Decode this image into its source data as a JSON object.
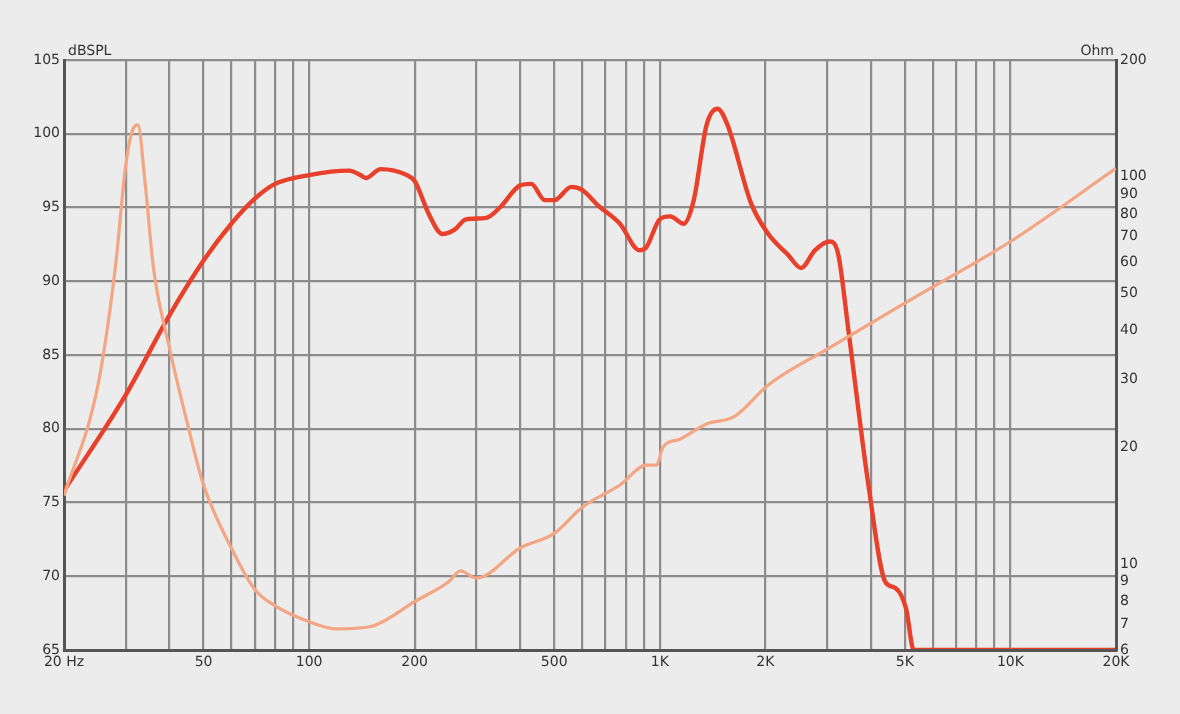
{
  "chart_data": [
    {
      "type": "line",
      "ylabel": "dBSPL",
      "log": "x",
      "grid": true,
      "legend": false,
      "marker": "none",
      "line_style": "solid",
      "xlim": [
        20,
        20000
      ],
      "xticks": [
        {
          "value": 20,
          "label": "20 Hz"
        },
        {
          "value": 30,
          "label": null
        },
        {
          "value": 40,
          "label": null
        },
        {
          "value": 50,
          "label": "50"
        },
        {
          "value": 60,
          "label": null
        },
        {
          "value": 70,
          "label": null
        },
        {
          "value": 80,
          "label": null
        },
        {
          "value": 90,
          "label": null
        },
        {
          "value": 100,
          "label": "100"
        },
        {
          "value": 200,
          "label": "200"
        },
        {
          "value": 300,
          "label": null
        },
        {
          "value": 400,
          "label": null
        },
        {
          "value": 500,
          "label": "500"
        },
        {
          "value": 600,
          "label": null
        },
        {
          "value": 700,
          "label": null
        },
        {
          "value": 800,
          "label": null
        },
        {
          "value": 900,
          "label": null
        },
        {
          "value": 1000,
          "label": "1K"
        },
        {
          "value": 2000,
          "label": "2K"
        },
        {
          "value": 3000,
          "label": null
        },
        {
          "value": 4000,
          "label": null
        },
        {
          "value": 5000,
          "label": "5K"
        },
        {
          "value": 6000,
          "label": null
        },
        {
          "value": 7000,
          "label": null
        },
        {
          "value": 8000,
          "label": null
        },
        {
          "value": 9000,
          "label": null
        },
        {
          "value": 10000,
          "label": "10K"
        },
        {
          "value": 20000,
          "label": "20K"
        }
      ],
      "ylim": [
        65,
        105
      ],
      "yticks": [
        65,
        70,
        75,
        80,
        85,
        90,
        95,
        100,
        105
      ],
      "series": [
        {
          "color": "#e8402a",
          "x": [
            20,
            30,
            40,
            50,
            60,
            70,
            80,
            100,
            130,
            140,
            145,
            160,
            190,
            200,
            220,
            240,
            260,
            280,
            320,
            350,
            400,
            430,
            470,
            500,
            560,
            600,
            670,
            770,
            875,
            915,
            1000,
            1070,
            1170,
            1250,
            1360,
            1460,
            1560,
            1820,
            2040,
            2320,
            2530,
            2770,
            3050,
            3230,
            3450,
            3940,
            4400,
            4700,
            5040,
            5300,
            10000,
            20000
          ],
          "values": [
            75.8,
            82.3,
            87.7,
            91.4,
            93.9,
            95.6,
            96.6,
            97.2,
            97.5,
            97.2,
            97.0,
            97.6,
            97.2,
            96.8,
            94.5,
            93.2,
            93.5,
            94.2,
            94.3,
            95.0,
            96.5,
            96.6,
            95.5,
            95.5,
            96.4,
            96.2,
            95.1,
            93.9,
            92.1,
            92.3,
            94.2,
            94.4,
            93.9,
            95.5,
            100.6,
            101.7,
            100.6,
            95.3,
            93.2,
            91.8,
            90.9,
            92.1,
            92.7,
            91.8,
            86.7,
            76.1,
            69.6,
            69.2,
            67.8,
            65,
            65,
            65
          ]
        }
      ]
    },
    {
      "type": "line",
      "ylabel": "Ohm",
      "log": "xy",
      "tick_labels": "y",
      "legend": false,
      "marker": "none",
      "line_style": "solid",
      "xlim": [
        20,
        20000
      ],
      "ylim": [
        6,
        200
      ],
      "yticks": [
        6,
        7,
        8,
        9,
        10,
        20,
        30,
        40,
        50,
        60,
        70,
        80,
        90,
        100,
        200
      ],
      "series": [
        {
          "color": "#f4a582",
          "x": [
            20,
            25,
            28,
            30,
            31.5,
            32.5,
            34,
            36,
            40,
            45,
            50,
            60,
            70,
            80,
            100,
            120,
            150,
            200,
            250,
            270,
            300,
            400,
            500,
            600,
            770,
            915,
            980,
            1020,
            1140,
            1360,
            1630,
            2040,
            3020,
            5380,
            10000,
            20000
          ],
          "values": [
            15,
            29,
            58,
            107,
            133,
            136,
            98,
            58,
            36,
            23,
            16,
            11,
            8.6,
            7.8,
            7.1,
            6.8,
            6.9,
            8.0,
            9.0,
            9.6,
            9.2,
            11,
            12,
            14,
            16,
            18,
            18,
            20,
            21,
            23,
            24,
            29,
            36,
            49,
            68,
            105
          ]
        }
      ]
    }
  ]
}
